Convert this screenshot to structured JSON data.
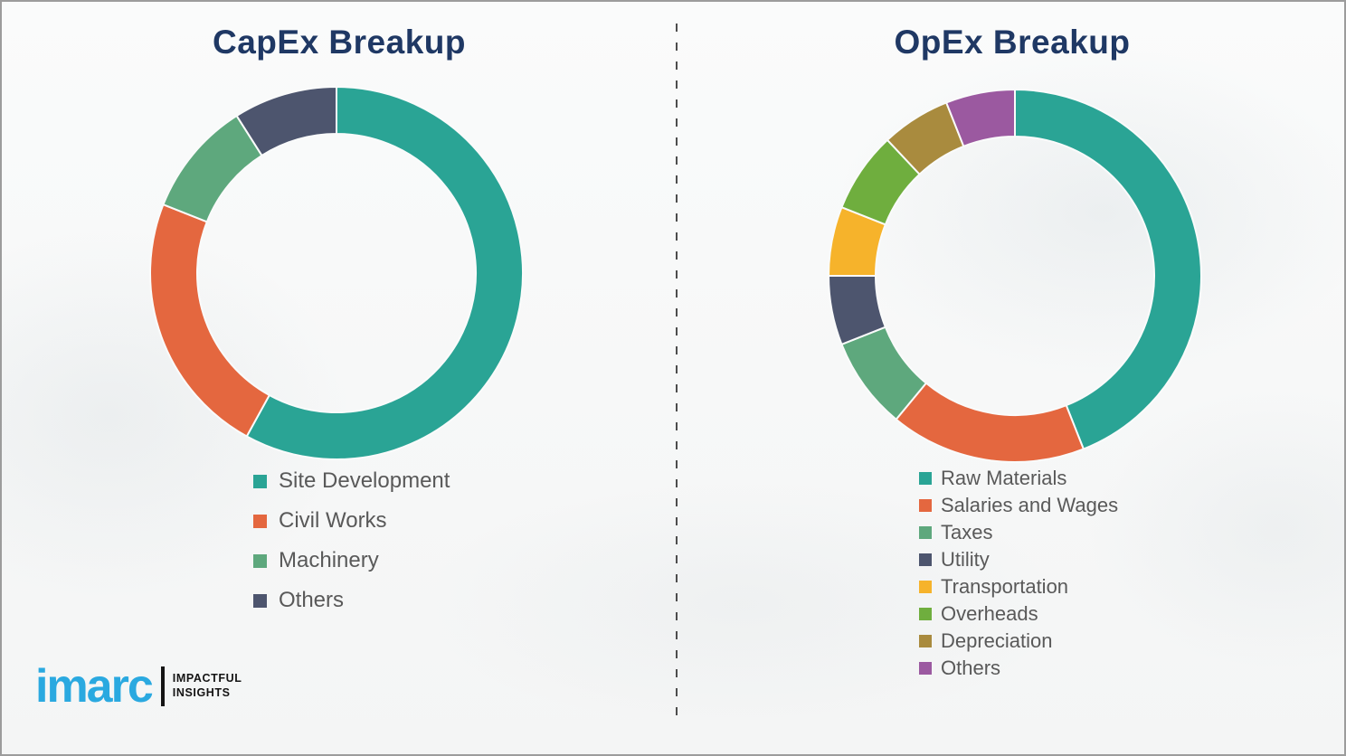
{
  "chart_data": [
    {
      "type": "pie",
      "subtype": "donut",
      "title": "CapEx Breakup",
      "legend_position": "below-left",
      "slices": [
        {
          "label": "Site Development",
          "value": 58,
          "color": "#2aa495"
        },
        {
          "label": "Civil Works",
          "value": 23,
          "color": "#e4673f"
        },
        {
          "label": "Machinery",
          "value": 10,
          "color": "#5ea87d"
        },
        {
          "label": "Others",
          "value": 9,
          "color": "#4d556e"
        }
      ]
    },
    {
      "type": "pie",
      "subtype": "donut",
      "title": "OpEx Breakup",
      "legend_position": "below-left",
      "slices": [
        {
          "label": "Raw Materials",
          "value": 44,
          "color": "#2aa495"
        },
        {
          "label": "Salaries and Wages",
          "value": 17,
          "color": "#e4673f"
        },
        {
          "label": "Taxes",
          "value": 8,
          "color": "#5ea87d"
        },
        {
          "label": "Utility",
          "value": 6,
          "color": "#4d556e"
        },
        {
          "label": "Transportation",
          "value": 6,
          "color": "#f6b32b"
        },
        {
          "label": "Overheads",
          "value": 7,
          "color": "#6fae3e"
        },
        {
          "label": "Depreciation",
          "value": 6,
          "color": "#a98b3e"
        },
        {
          "label": "Others",
          "value": 6,
          "color": "#9b59a0"
        }
      ]
    }
  ],
  "branding": {
    "logo_text": "imarc",
    "tagline_line1": "IMPACTFUL",
    "tagline_line2": "INSIGHTS",
    "logo_color": "#2aa9e0"
  }
}
